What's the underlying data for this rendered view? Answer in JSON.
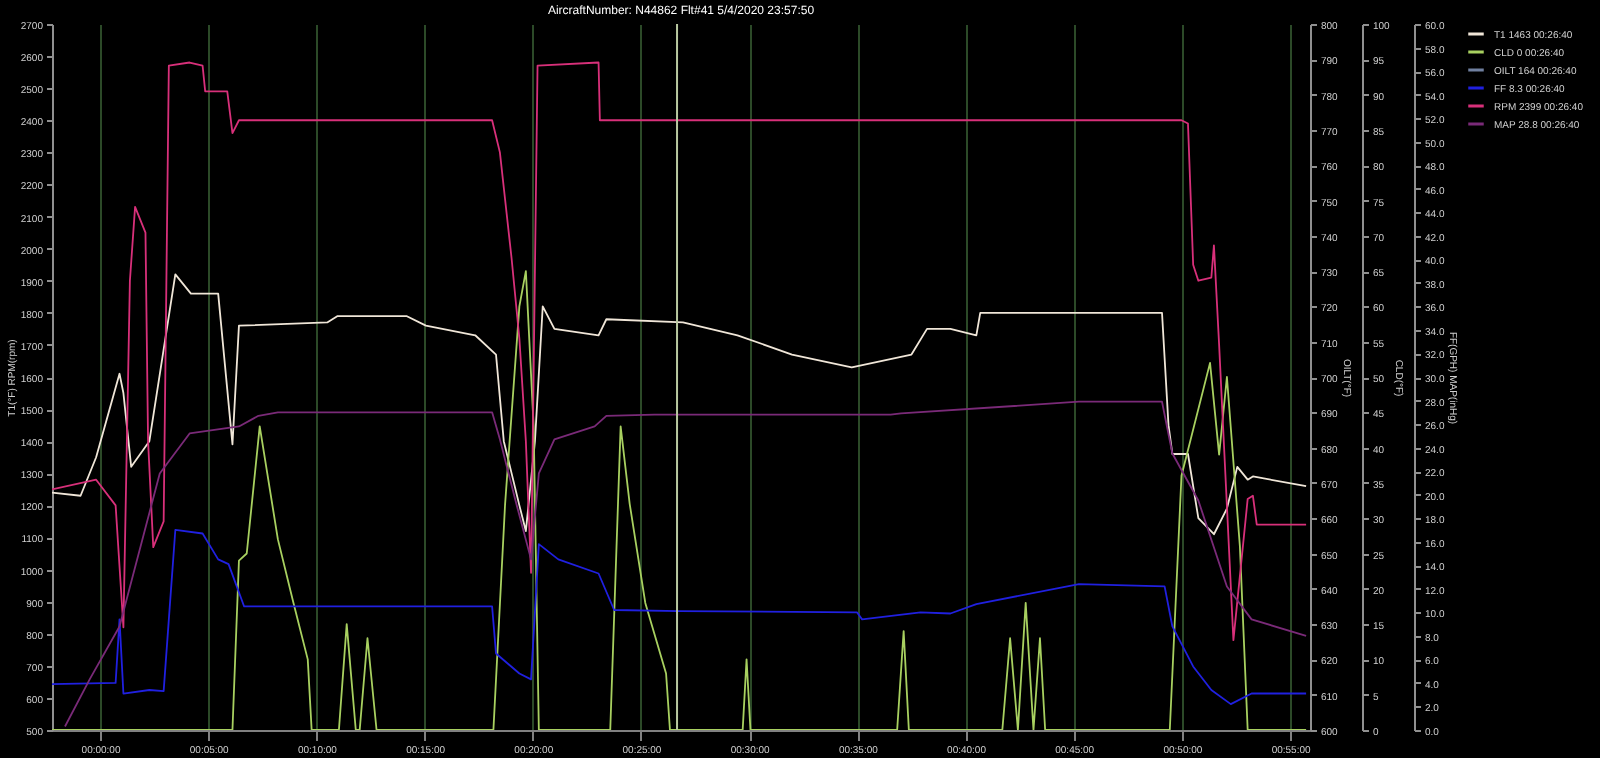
{
  "chart_data": {
    "type": "line",
    "title": "AircraftNumber: N44862 Flt#41 5/4/2020 23:57:50",
    "ylabel": "T1(°F) RPM(rpm)",
    "y3label": "CLD(°F)",
    "y2label": "FF(GPH) MAP(inHg)",
    "annotations": [
      "OILT(°F)",
      "600",
      "610",
      "620",
      "630",
      "640",
      "650",
      "660",
      "670",
      "680",
      "690",
      "700",
      "710",
      "720",
      "730",
      "740",
      "750",
      "760",
      "770",
      "780",
      "790",
      "800"
    ],
    "xlim": [
      -0.037,
      0.932
    ],
    "xticks": [
      {
        "value": 0,
        "label": "00:00:00"
      },
      {
        "value": 0.083333,
        "label": "00:05:00"
      },
      {
        "value": 0.166667,
        "label": "00:10:00"
      },
      {
        "value": 0.25,
        "label": "00:15:00"
      },
      {
        "value": 0.333333,
        "label": "00:20:00"
      },
      {
        "value": 0.416667,
        "label": "00:25:00"
      },
      {
        "value": 0.5,
        "label": "00:30:00"
      },
      {
        "value": 0.583333,
        "label": "00:35:00"
      },
      {
        "value": 0.666667,
        "label": "00:40:00"
      },
      {
        "value": 0.75,
        "label": "00:45:00"
      },
      {
        "value": 0.833333,
        "label": "00:50:00"
      },
      {
        "value": 0.916667,
        "label": "00:55:00"
      }
    ],
    "ylim": [
      500,
      2700
    ],
    "yticks": [
      500,
      600,
      700,
      800,
      900,
      1000,
      1100,
      1200,
      1300,
      1400,
      1500,
      1600,
      1700,
      1800,
      1900,
      2000,
      2100,
      2200,
      2300,
      2400,
      2500,
      2600,
      2700
    ],
    "y3lim": [
      0,
      100
    ],
    "y3ticks": [
      0,
      5,
      10,
      15,
      20,
      25,
      30,
      35,
      40,
      45,
      50,
      55,
      60,
      65,
      70,
      75,
      80,
      85,
      90,
      95,
      100
    ],
    "y2lim": [
      0,
      60
    ],
    "y2ticks": [
      {
        "value": 0,
        "label": "0.0"
      },
      {
        "value": 2,
        "label": "2.0"
      },
      {
        "value": 4,
        "label": "4.0"
      },
      {
        "value": 6,
        "label": "6.0"
      },
      {
        "value": 8,
        "label": "8.0"
      },
      {
        "value": 10,
        "label": "10.0"
      },
      {
        "value": 12,
        "label": "12.0"
      },
      {
        "value": 14,
        "label": "14.0"
      },
      {
        "value": 16,
        "label": "16.0"
      },
      {
        "value": 18,
        "label": "18.0"
      },
      {
        "value": 20,
        "label": "20.0"
      },
      {
        "value": 22,
        "label": "22.0"
      },
      {
        "value": 24,
        "label": "24.0"
      },
      {
        "value": 26,
        "label": "26.0"
      },
      {
        "value": 28,
        "label": "28.0"
      },
      {
        "value": 30,
        "label": "30.0"
      },
      {
        "value": 32,
        "label": "32.0"
      },
      {
        "value": 34,
        "label": "34.0"
      },
      {
        "value": 36,
        "label": "36.0"
      },
      {
        "value": 38,
        "label": "38.0"
      },
      {
        "value": 40,
        "label": "40.0"
      },
      {
        "value": 42,
        "label": "42.0"
      },
      {
        "value": 44,
        "label": "44.0"
      },
      {
        "value": 46,
        "label": "46.0"
      },
      {
        "value": 48,
        "label": "48.0"
      },
      {
        "value": 50,
        "label": "50.0"
      },
      {
        "value": 52,
        "label": "52.0"
      },
      {
        "value": 54,
        "label": "54.0"
      },
      {
        "value": 56,
        "label": "56.0"
      },
      {
        "value": 58,
        "label": "58.0"
      },
      {
        "value": 60,
        "label": "60.0"
      }
    ],
    "grid": "x",
    "legend": "top right",
    "line_style": "solid",
    "ref_lines": [
      {
        "axis": "x",
        "value": 0.444444,
        "color": "#b8c8a0"
      }
    ],
    "series": [
      {
        "name": "T1   1463   00:26:40",
        "color": "#f0e6d8",
        "axis": "y",
        "x": [
          -0.037,
          -0.015,
          -0.003,
          0.015,
          0.018,
          0.024,
          0.038,
          0.058,
          0.07,
          0.091,
          0.102,
          0.107,
          0.175,
          0.183,
          0.236,
          0.251,
          0.289,
          0.305,
          0.311,
          0.323,
          0.328,
          0.335,
          0.341,
          0.35,
          0.384,
          0.39,
          0.449,
          0.491,
          0.533,
          0.579,
          0.625,
          0.637,
          0.655,
          0.675,
          0.678,
          0.818,
          0.823,
          0.826,
          0.838,
          0.846,
          0.858,
          0.868,
          0.876,
          0.884,
          0.888,
          0.929
        ],
        "values": [
          1240,
          1230,
          1350,
          1610,
          1550,
          1320,
          1400,
          1920,
          1860,
          1860,
          1390,
          1760,
          1770,
          1790,
          1790,
          1760,
          1730,
          1670,
          1400,
          1200,
          1120,
          1400,
          1820,
          1750,
          1730,
          1780,
          1770,
          1730,
          1670,
          1630,
          1670,
          1750,
          1750,
          1730,
          1800,
          1800,
          1450,
          1360,
          1360,
          1160,
          1110,
          1190,
          1320,
          1280,
          1290,
          1260
        ]
      },
      {
        "name": "CLD   0   00:26:40",
        "color": "#a8d060",
        "axis": "y3",
        "x": [
          -0.037,
          0.102,
          0.107,
          0.113,
          0.123,
          0.137,
          0.149,
          0.16,
          0.163,
          0.184,
          0.19,
          0.197,
          0.2,
          0.206,
          0.213,
          0.303,
          0.312,
          0.323,
          0.328,
          0.334,
          0.338,
          0.393,
          0.401,
          0.408,
          0.42,
          0.436,
          0.439,
          0.495,
          0.498,
          0.501,
          0.614,
          0.619,
          0.623,
          0.695,
          0.701,
          0.707,
          0.713,
          0.719,
          0.724,
          0.728,
          0.824,
          0.833,
          0.855,
          0.862,
          0.868,
          0.878,
          0.884,
          0.929
        ],
        "values": [
          0,
          0,
          24,
          25,
          43,
          27,
          18,
          10,
          0,
          0,
          15,
          0,
          0,
          13,
          0,
          0,
          32,
          60,
          65,
          43,
          0,
          0,
          43,
          32,
          18,
          8,
          0,
          0,
          10,
          0,
          0,
          14,
          0,
          0,
          13,
          0,
          18,
          0,
          13,
          0,
          0,
          36,
          52,
          39,
          50,
          26,
          0,
          0
        ]
      },
      {
        "name": "OILT   164   00:26:40",
        "color": "#7080a0"
      },
      {
        "name": "FF   8.3   00:26:40",
        "color": "#2020e0",
        "axis": "y2",
        "x": [
          -0.037,
          0.012,
          0.015,
          0.018,
          0.038,
          0.049,
          0.053,
          0.058,
          0.079,
          0.091,
          0.099,
          0.111,
          0.229,
          0.302,
          0.305,
          0.323,
          0.332,
          0.338,
          0.353,
          0.384,
          0.396,
          0.446,
          0.583,
          0.587,
          0.632,
          0.655,
          0.675,
          0.754,
          0.82,
          0.826,
          0.842,
          0.856,
          0.871,
          0.887,
          0.929
        ],
        "values": [
          3.9,
          4.0,
          9.4,
          3.1,
          3.4,
          3.3,
          9.4,
          17.0,
          16.7,
          14.5,
          14.1,
          10.5,
          10.5,
          10.5,
          6.5,
          4.8,
          4.3,
          15.8,
          14.5,
          13.3,
          10.2,
          10.1,
          10.0,
          9.4,
          10.0,
          9.9,
          10.7,
          12.4,
          12.2,
          8.8,
          5.4,
          3.4,
          2.2,
          3.1,
          3.1
        ]
      },
      {
        "name": "RPM   2399   00:26:40",
        "color": "#d8307a",
        "axis": "y",
        "x": [
          -0.037,
          -0.003,
          0.012,
          0.018,
          0.023,
          0.027,
          0.035,
          0.037,
          0.041,
          0.049,
          0.053,
          0.069,
          0.079,
          0.081,
          0.098,
          0.102,
          0.107,
          0.175,
          0.229,
          0.302,
          0.308,
          0.317,
          0.323,
          0.328,
          0.332,
          0.337,
          0.384,
          0.385,
          0.449,
          0.533,
          0.655,
          0.754,
          0.833,
          0.838,
          0.842,
          0.846,
          0.856,
          0.858,
          0.862,
          0.873,
          0.884,
          0.888,
          0.891,
          0.929
        ],
        "values": [
          1250,
          1280,
          1200,
          820,
          1900,
          2130,
          2050,
          1400,
          1070,
          1150,
          2570,
          2580,
          2570,
          2490,
          2490,
          2360,
          2400,
          2400,
          2400,
          2400,
          2300,
          1970,
          1720,
          1400,
          990,
          2570,
          2580,
          2400,
          2400,
          2400,
          2400,
          2400,
          2400,
          2390,
          1950,
          1900,
          1910,
          2010,
          1700,
          780,
          1220,
          1230,
          1140,
          1140
        ]
      },
      {
        "name": "MAP   28.8   00:26:40",
        "color": "#7a2a78",
        "axis": "y2",
        "x": [
          -0.027,
          -0.008,
          0.015,
          0.046,
          0.069,
          0.107,
          0.122,
          0.137,
          0.302,
          0.308,
          0.32,
          0.332,
          0.338,
          0.35,
          0.381,
          0.39,
          0.427,
          0.609,
          0.617,
          0.754,
          0.818,
          0.826,
          0.846,
          0.868,
          0.887,
          0.929
        ],
        "values": [
          0.3,
          4.3,
          8.8,
          21.8,
          25.2,
          25.8,
          26.7,
          27.0,
          27.0,
          24.7,
          19.5,
          14.5,
          21.8,
          24.7,
          25.8,
          26.7,
          26.8,
          26.8,
          26.9,
          27.9,
          27.9,
          23.5,
          19.5,
          12.2,
          9.4,
          8.0
        ]
      }
    ]
  }
}
